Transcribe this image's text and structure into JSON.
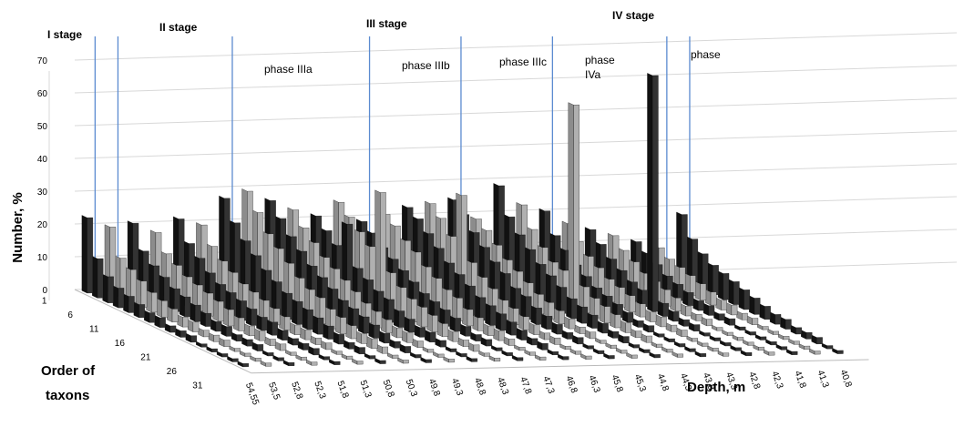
{
  "chart_data": {
    "type": "bar",
    "subtype": "3d-column",
    "ylabel": "Number, %",
    "xlabel": "Order of taxons",
    "zlabel": "Depth, m",
    "ylim": [
      0,
      70
    ],
    "yticks": [
      "0",
      "10",
      "20",
      "30",
      "40",
      "50",
      "60",
      "70"
    ],
    "x_ticks": [
      "1",
      "6",
      "11",
      "16",
      "21",
      "26",
      "31"
    ],
    "depth_ticks": [
      "54,55",
      "53,5",
      "52,8",
      "52,3",
      "51,8",
      "51,3",
      "50,8",
      "50,3",
      "49,8",
      "49,3",
      "48,8",
      "48,3",
      "47,8",
      "47,3",
      "46,8",
      "46,3",
      "45,8",
      "45,3",
      "44,8",
      "44,3",
      "43,8",
      "43,3",
      "42,8",
      "42,3",
      "41,8",
      "41,3",
      "40,8"
    ],
    "series_colors": [
      "#111111",
      "#8c8c8c"
    ],
    "grid": true,
    "stages": [
      {
        "label": "I stage"
      },
      {
        "label": "II stage"
      },
      {
        "label": "III stage"
      },
      {
        "label": "IV stage"
      }
    ],
    "phases": [
      {
        "label": "phase IIIa"
      },
      {
        "label": "phase IIIb"
      },
      {
        "label": "phase IIIc"
      },
      {
        "label": "phase",
        "label2": "IVa"
      },
      {
        "label": "phase"
      }
    ],
    "series": [
      {
        "depth": "54,55",
        "values": [
          23,
          12,
          8,
          6,
          5,
          4,
          3,
          3,
          2,
          2,
          2,
          1,
          1,
          1,
          1,
          1
        ]
      },
      {
        "depth": "53,5",
        "values": [
          20,
          12,
          10,
          8,
          6,
          5,
          4,
          3,
          3,
          2,
          2,
          2,
          1,
          1,
          1,
          1
        ]
      },
      {
        "depth": "52,8",
        "values": [
          21,
          14,
          11,
          9,
          7,
          6,
          5,
          4,
          3,
          3,
          2,
          2,
          2,
          1,
          1,
          1
        ]
      },
      {
        "depth": "52,3",
        "values": [
          18,
          13,
          11,
          9,
          8,
          7,
          6,
          5,
          4,
          3,
          3,
          2,
          2,
          1,
          1,
          1
        ]
      },
      {
        "depth": "51,8",
        "values": [
          22,
          16,
          13,
          10,
          8,
          7,
          6,
          5,
          4,
          4,
          3,
          2,
          2,
          2,
          1,
          1
        ]
      },
      {
        "depth": "51,3",
        "values": [
          20,
          15,
          12,
          10,
          8,
          7,
          6,
          5,
          4,
          3,
          3,
          2,
          2,
          1,
          1,
          1
        ]
      },
      {
        "depth": "50,8",
        "values": [
          28,
          22,
          18,
          15,
          12,
          10,
          8,
          7,
          6,
          5,
          4,
          3,
          2,
          2,
          1,
          1
        ]
      },
      {
        "depth": "50,3",
        "values": [
          30,
          25,
          20,
          17,
          14,
          11,
          9,
          8,
          6,
          5,
          4,
          3,
          3,
          2,
          1,
          1
        ]
      },
      {
        "depth": "49,8",
        "values": [
          27,
          23,
          19,
          16,
          13,
          11,
          9,
          7,
          6,
          5,
          4,
          3,
          2,
          2,
          1,
          1
        ]
      },
      {
        "depth": "49,3",
        "values": [
          24,
          20,
          17,
          14,
          12,
          10,
          8,
          6,
          5,
          4,
          3,
          3,
          2,
          1,
          1,
          1
        ]
      },
      {
        "depth": "48,8",
        "values": [
          22,
          19,
          16,
          24,
          12,
          10,
          8,
          7,
          5,
          4,
          3,
          3,
          2,
          1,
          1,
          1
        ]
      },
      {
        "depth": "48,3",
        "values": [
          26,
          23,
          20,
          17,
          35,
          12,
          9,
          7,
          6,
          5,
          4,
          3,
          2,
          2,
          1,
          1
        ]
      },
      {
        "depth": "47,8",
        "values": [
          20,
          18,
          15,
          13,
          11,
          9,
          7,
          6,
          5,
          4,
          3,
          2,
          2,
          1,
          1,
          1
        ]
      },
      {
        "depth": "47,3",
        "values": [
          22,
          20,
          17,
          15,
          12,
          10,
          8,
          7,
          5,
          4,
          3,
          3,
          2,
          1,
          1,
          1
        ]
      },
      {
        "depth": "46,8",
        "values": [
          24,
          22,
          19,
          16,
          13,
          11,
          9,
          7,
          6,
          5,
          4,
          3,
          2,
          2,
          1,
          1
        ]
      },
      {
        "depth": "46,3",
        "values": [
          25,
          22,
          18,
          32,
          13,
          10,
          8,
          6,
          5,
          4,
          3,
          2,
          2,
          1,
          1,
          1
        ]
      },
      {
        "depth": "45,8",
        "values": [
          26,
          23,
          19,
          16,
          13,
          11,
          8,
          7,
          5,
          4,
          3,
          2,
          2,
          1,
          1,
          1
        ]
      },
      {
        "depth": "45,3",
        "values": [
          20,
          18,
          15,
          12,
          10,
          8,
          6,
          5,
          4,
          3,
          2,
          2,
          1,
          1,
          1,
          1
        ]
      },
      {
        "depth": "44,8",
        "values": [
          30,
          22,
          18,
          15,
          12,
          10,
          8,
          6,
          5,
          4,
          3,
          2,
          2,
          1,
          1,
          1
        ]
      },
      {
        "depth": "44,3",
        "values": [
          24,
          18,
          14,
          11,
          10,
          62,
          8,
          6,
          5,
          4,
          3,
          2,
          2,
          1,
          1,
          1
        ]
      },
      {
        "depth": "43,8",
        "values": [
          22,
          16,
          13,
          10,
          8,
          6,
          5,
          4,
          3,
          2,
          2,
          1,
          1,
          1,
          1,
          1
        ]
      },
      {
        "depth": "43,3",
        "values": [
          18,
          14,
          11,
          9,
          7,
          6,
          5,
          4,
          3,
          3,
          2,
          2,
          1,
          1,
          1,
          1
        ]
      },
      {
        "depth": "42,8",
        "values": [
          16,
          13,
          10,
          8,
          6,
          5,
          72,
          4,
          3,
          2,
          2,
          1,
          1,
          1,
          1,
          1
        ]
      },
      {
        "depth": "42,3",
        "values": [
          14,
          11,
          9,
          7,
          6,
          5,
          4,
          3,
          2,
          2,
          1,
          1,
          1,
          1,
          1,
          1
        ]
      },
      {
        "depth": "41,8",
        "values": [
          12,
          10,
          8,
          6,
          5,
          4,
          3,
          3,
          2,
          2,
          1,
          1,
          1,
          1,
          1,
          1
        ]
      },
      {
        "depth": "41,3",
        "values": [
          10,
          8,
          7,
          6,
          5,
          4,
          3,
          3,
          2,
          2,
          1,
          1,
          1,
          1,
          1,
          1
        ]
      },
      {
        "depth": "40,8",
        "values": [
          20,
          14,
          11,
          9,
          8,
          7,
          6,
          5,
          4,
          3,
          3,
          2,
          2,
          2,
          1,
          1
        ]
      }
    ]
  }
}
